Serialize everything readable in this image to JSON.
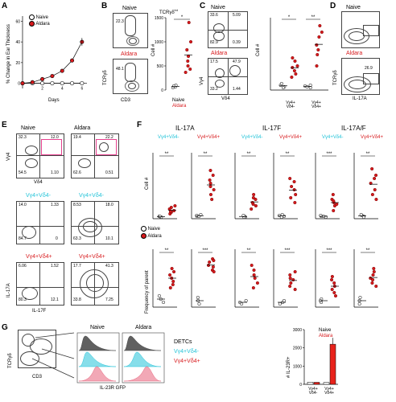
{
  "panels": [
    "A",
    "B",
    "C",
    "D",
    "E",
    "F",
    "G"
  ],
  "A": {
    "ylabel": "% Change in Ear Thickness",
    "xlabel": "Days",
    "legend": [
      "Naive",
      "Aldara"
    ],
    "chart_data": {
      "type": "line",
      "x": [
        0,
        1,
        2,
        3,
        4,
        5,
        6
      ],
      "series": [
        {
          "name": "Naive",
          "values": [
            0,
            0,
            0,
            0,
            0,
            0,
            0
          ]
        },
        {
          "name": "Aldara",
          "values": [
            0,
            1,
            4,
            7,
            12,
            22,
            40
          ]
        }
      ],
      "yticks": [
        "0",
        "20",
        "40",
        "60"
      ],
      "xticks": [
        "2",
        "4",
        "6"
      ],
      "ylim": [
        -5,
        65
      ]
    }
  },
  "B": {
    "flow_top": "Naive",
    "flow_bot": "Aldara",
    "gate_top": "22.3",
    "gate_bot": "48.1",
    "ylabel": "TCRγδ",
    "xlabel": "CD3",
    "dot_title": "TCRγδ",
    "dot_title_sup": "int",
    "dot_ylabel": "Cell #",
    "yticks": [
      "0",
      "500",
      "1000",
      "1500"
    ],
    "sig": "*",
    "leg": [
      "Naive",
      "Aldara"
    ]
  },
  "C": {
    "flow_top": "Naive",
    "flow_bot": "Aldara",
    "q_top": [
      "33.6",
      "5.09",
      "82.9",
      "0.39"
    ],
    "q_bot": [
      "17.5",
      "47.9",
      "33.2",
      "1.44"
    ],
    "ylabel": "Vγ4",
    "xlabel": "Vδ4",
    "dot_ylabel": "Cell #",
    "sig": [
      "*",
      "**"
    ],
    "xcats": [
      "Vγ4+ Vδ4-",
      "Vγ4+ Vδ4+"
    ]
  },
  "D": {
    "flow_top": "Naive",
    "flow_bot": "Aldara",
    "gate_bot": "26.9",
    "ylabel": "TCRγδ",
    "xlabel": "IL-17A"
  },
  "E": {
    "title_left": "Naive",
    "title_right": "Aldara",
    "q_naive": [
      "32.3",
      "12.0",
      "54.5",
      "1.10"
    ],
    "q_aldara": [
      "19.4",
      "22.2",
      "62.6",
      "0.51"
    ],
    "ylabel_top": "Vγ4",
    "xlabel_top": "Vδ4",
    "mid_label_l": "Vγ4+Vδ4-",
    "mid_label_r": "Vγ4+Vδ4-",
    "q_mid_l": [
      "14.0",
      "1.33",
      "84.7",
      "0"
    ],
    "q_mid_r": [
      "8.53",
      "18.0",
      "63.3",
      "10.1"
    ],
    "bot_label_l": "Vγ4+Vδ4+",
    "bot_label_r": "Vγ4+Vδ4+",
    "q_bot_l": [
      "6.06",
      "1.52",
      "80.3",
      "12.1"
    ],
    "q_bot_r": [
      "17.7",
      "41.3",
      "33.8",
      "7.25"
    ],
    "ylabel_bot": "IL-17A",
    "xlabel_bot": "IL-17F"
  },
  "F": {
    "groups": [
      "IL-17A",
      "IL-17F",
      "IL-17A/F"
    ],
    "sub_neg": "Vγ4+Vδ4-",
    "sub_pos": "Vγ4+Vδ4+",
    "ylabel_top": "Cell #",
    "ylabel_bot": "Frequency of parent",
    "legend": [
      "Naive",
      "Aldara"
    ],
    "sig_top": [
      "**",
      "**",
      "**",
      "**",
      "***",
      "**"
    ],
    "sig_bot": [
      "**",
      "***",
      "**",
      "***",
      "***",
      "**"
    ]
  },
  "G": {
    "flow_ylabel": "TCRγδ",
    "flow_xlabel": "CD3",
    "hist_titles": [
      "Naive",
      "Aldara"
    ],
    "hist_xlabel": "IL-23R GFP",
    "legend": [
      "DETCs",
      "Vγ4+Vδ4-",
      "Vγ4+Vδ4+"
    ],
    "bar_legend": [
      "Naive",
      "Aldara"
    ],
    "bar_ylabel": "# IL-23R+",
    "chart_data": {
      "type": "bar",
      "categories": [
        "Vγ4+ Vδ4-",
        "Vγ4+ Vδ4+"
      ],
      "series": [
        {
          "name": "Naive",
          "values": [
            120,
            100
          ]
        },
        {
          "name": "Aldara",
          "values": [
            110,
            2200
          ]
        }
      ],
      "yticks": [
        "0",
        "1000",
        "2000",
        "3000"
      ],
      "ylim": [
        0,
        3000
      ]
    }
  }
}
